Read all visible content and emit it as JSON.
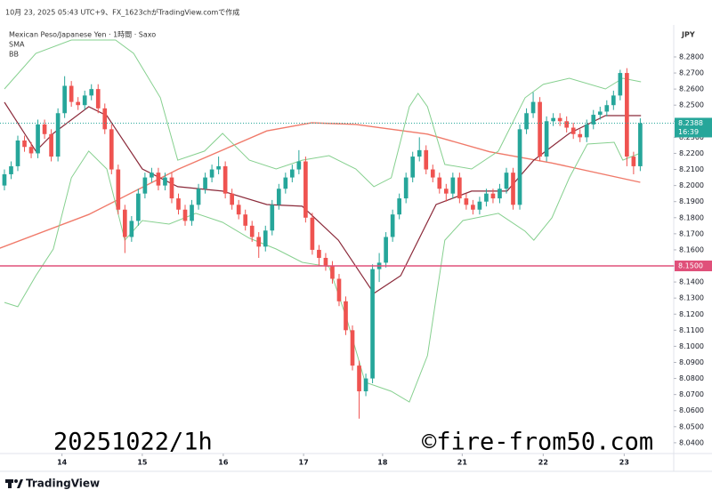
{
  "chart_data": {
    "type": "candlestick",
    "header": "10月 23, 2025 05:43 UTC+9、FX_1623chがTradingView.comで作成",
    "title": "Mexican Peso/Japanese Yen · 1時間 · Saxo",
    "indicators": [
      "SMA",
      "BB"
    ],
    "currency": "JPY",
    "watermark_left": "20251022/1h",
    "watermark_right": "©fire-from50.com",
    "brand": "TradingView",
    "countdown": "16:39",
    "up_color": "#26a69a",
    "down_color": "#ef5350",
    "xlim": [
      -0.66,
      100
    ],
    "xticks": [
      {
        "value": 8.6,
        "label": "14"
      },
      {
        "value": 20.6,
        "label": "15"
      },
      {
        "value": 32.7,
        "label": "16"
      },
      {
        "value": 44.7,
        "label": "17"
      },
      {
        "value": 56.5,
        "label": "18"
      },
      {
        "value": 68.4,
        "label": "21"
      },
      {
        "value": 80.5,
        "label": "22"
      },
      {
        "value": 92.6,
        "label": "23"
      }
    ],
    "ylim": [
      8.0333,
      8.2988
    ],
    "yticks": [
      {
        "value": 8.04,
        "label": "8.0400"
      },
      {
        "value": 8.05,
        "label": "8.0500"
      },
      {
        "value": 8.06,
        "label": "8.0600"
      },
      {
        "value": 8.07,
        "label": "8.0700"
      },
      {
        "value": 8.08,
        "label": "8.0800"
      },
      {
        "value": 8.09,
        "label": "8.0900"
      },
      {
        "value": 8.1,
        "label": "8.1000"
      },
      {
        "value": 8.11,
        "label": "8.1100"
      },
      {
        "value": 8.12,
        "label": "8.1200"
      },
      {
        "value": 8.13,
        "label": "8.1300"
      },
      {
        "value": 8.14,
        "label": "8.1400"
      },
      {
        "value": 8.15,
        "label": "8.1500"
      },
      {
        "value": 8.16,
        "label": "8.1600"
      },
      {
        "value": 8.17,
        "label": "8.1700"
      },
      {
        "value": 8.18,
        "label": "8.1800"
      },
      {
        "value": 8.19,
        "label": "8.1900"
      },
      {
        "value": 8.2,
        "label": "8.2000"
      },
      {
        "value": 8.21,
        "label": "8.2100"
      },
      {
        "value": 8.22,
        "label": "8.2200"
      },
      {
        "value": 8.23,
        "label": "8.2300"
      },
      {
        "value": 8.24,
        "label": "8.2400"
      },
      {
        "value": 8.25,
        "label": "8.2500"
      },
      {
        "value": 8.26,
        "label": "8.2600"
      },
      {
        "value": 8.27,
        "label": "8.2700"
      },
      {
        "value": 8.28,
        "label": "8.2800"
      }
    ],
    "grid": false,
    "hline": {
      "value": 8.15,
      "label": "8.1500",
      "color": "#e0507a"
    },
    "open": [
      8.2,
      8.207,
      8.212,
      8.228,
      8.224,
      8.22,
      8.238,
      8.232,
      8.218,
      8.245,
      8.262,
      8.252,
      8.25,
      8.256,
      8.26,
      8.248,
      8.235,
      8.21,
      8.185,
      8.168,
      8.178,
      8.195,
      8.205,
      8.208,
      8.2,
      8.205,
      8.192,
      8.185,
      8.178,
      8.188,
      8.198,
      8.205,
      8.21,
      8.212,
      8.195,
      8.188,
      8.182,
      8.175,
      8.168,
      8.162,
      8.172,
      8.188,
      8.198,
      8.205,
      8.21,
      8.215,
      8.18,
      8.16,
      8.155,
      8.15,
      8.142,
      8.128,
      8.11,
      8.088,
      8.072,
      8.08,
      8.148,
      8.152,
      8.168,
      8.182,
      8.192,
      8.205,
      8.218,
      8.222,
      8.21,
      8.205,
      8.198,
      8.195,
      8.205,
      8.192,
      8.188,
      8.185,
      8.19,
      8.195,
      8.192,
      8.198,
      8.208,
      8.188,
      8.235,
      8.245,
      8.252,
      8.218,
      8.24,
      8.242,
      8.24,
      8.236,
      8.232,
      8.23,
      8.238,
      8.244,
      8.246,
      8.25,
      8.256,
      8.27,
      8.218,
      8.212
    ],
    "high": [
      8.21,
      8.215,
      8.231,
      8.231,
      8.227,
      8.241,
      8.241,
      8.235,
      8.248,
      8.268,
      8.265,
      8.255,
      8.259,
      8.263,
      8.263,
      8.251,
      8.238,
      8.213,
      8.188,
      8.181,
      8.198,
      8.208,
      8.211,
      8.211,
      8.208,
      8.208,
      8.195,
      8.188,
      8.191,
      8.201,
      8.208,
      8.213,
      8.218,
      8.215,
      8.198,
      8.191,
      8.185,
      8.178,
      8.171,
      8.175,
      8.191,
      8.201,
      8.208,
      8.213,
      8.222,
      8.218,
      8.183,
      8.163,
      8.158,
      8.153,
      8.145,
      8.131,
      8.113,
      8.091,
      8.083,
      8.151,
      8.158,
      8.171,
      8.185,
      8.195,
      8.208,
      8.221,
      8.23,
      8.225,
      8.213,
      8.208,
      8.201,
      8.208,
      8.208,
      8.195,
      8.191,
      8.193,
      8.198,
      8.198,
      8.201,
      8.211,
      8.211,
      8.238,
      8.248,
      8.258,
      8.255,
      8.243,
      8.245,
      8.245,
      8.243,
      8.239,
      8.235,
      8.241,
      8.247,
      8.249,
      8.253,
      8.259,
      8.272,
      8.273,
      8.221,
      8.2418
    ],
    "low": [
      8.197,
      8.204,
      8.209,
      8.221,
      8.217,
      8.217,
      8.229,
      8.215,
      8.215,
      8.242,
      8.249,
      8.247,
      8.247,
      8.253,
      8.245,
      8.232,
      8.207,
      8.182,
      8.158,
      8.165,
      8.175,
      8.192,
      8.202,
      8.197,
      8.197,
      8.189,
      8.182,
      8.175,
      8.175,
      8.185,
      8.195,
      8.202,
      8.207,
      8.192,
      8.185,
      8.179,
      8.172,
      8.165,
      8.155,
      8.159,
      8.169,
      8.185,
      8.195,
      8.202,
      8.207,
      8.177,
      8.157,
      8.15,
      8.147,
      8.139,
      8.125,
      8.107,
      8.085,
      8.055,
      8.069,
      8.077,
      8.14,
      8.149,
      8.165,
      8.179,
      8.189,
      8.202,
      8.215,
      8.207,
      8.202,
      8.195,
      8.19,
      8.192,
      8.189,
      8.185,
      8.182,
      8.182,
      8.187,
      8.189,
      8.189,
      8.195,
      8.185,
      8.185,
      8.232,
      8.242,
      8.215,
      8.215,
      8.237,
      8.237,
      8.233,
      8.229,
      8.227,
      8.227,
      8.235,
      8.241,
      8.243,
      8.247,
      8.253,
      8.212,
      8.207,
      8.209
    ],
    "close": [
      8.207,
      8.212,
      8.228,
      8.224,
      8.22,
      8.238,
      8.232,
      8.218,
      8.245,
      8.262,
      8.252,
      8.25,
      8.256,
      8.26,
      8.248,
      8.235,
      8.21,
      8.185,
      8.168,
      8.178,
      8.195,
      8.205,
      8.208,
      8.2,
      8.205,
      8.192,
      8.185,
      8.178,
      8.188,
      8.198,
      8.205,
      8.21,
      8.212,
      8.195,
      8.188,
      8.182,
      8.175,
      8.168,
      8.162,
      8.172,
      8.188,
      8.198,
      8.205,
      8.21,
      8.215,
      8.18,
      8.16,
      8.155,
      8.15,
      8.142,
      8.128,
      8.11,
      8.088,
      8.072,
      8.08,
      8.148,
      8.152,
      8.168,
      8.182,
      8.192,
      8.205,
      8.218,
      8.222,
      8.21,
      8.205,
      8.198,
      8.195,
      8.205,
      8.192,
      8.188,
      8.185,
      8.19,
      8.195,
      8.192,
      8.198,
      8.208,
      8.188,
      8.235,
      8.245,
      8.252,
      8.218,
      8.24,
      8.242,
      8.24,
      8.236,
      8.232,
      8.23,
      8.238,
      8.244,
      8.246,
      8.25,
      8.256,
      8.27,
      8.218,
      8.212,
      8.2388
    ],
    "series": [
      {
        "color": "#f07a6a",
        "width": 1.4,
        "x": [
          -0.7,
          12.6,
          25.9,
          39.2,
          45.9,
          52.5,
          63.2,
          72.5,
          81.8,
          95
        ],
        "values": [
          8.161,
          8.182,
          8.21,
          8.234,
          8.239,
          8.238,
          8.232,
          8.221,
          8.214,
          8.202
        ]
      },
      {
        "color": "#8b2a3a",
        "width": 1.2,
        "x": [
          0,
          4.7,
          7.3,
          12.6,
          15.3,
          20.6,
          25.9,
          32.6,
          39.2,
          44.5,
          49.9,
          55.2,
          59.2,
          64.5,
          69.8,
          75.1,
          79.1,
          84.4,
          89.8,
          95.1
        ],
        "values": [
          8.2518,
          8.2214,
          8.2324,
          8.249,
          8.2435,
          8.2103,
          8.1993,
          8.1965,
          8.1882,
          8.1871,
          8.166,
          8.1329,
          8.1439,
          8.1882,
          8.1965,
          8.1965,
          8.2158,
          8.2324,
          8.2435,
          8.2435
        ]
      },
      {
        "color": "#86d08f",
        "width": 1,
        "x": [
          0,
          4.7,
          10,
          14,
          16.6,
          19.3,
          23.3,
          25.9,
          29.9,
          32.6,
          36.6,
          40.6,
          44.5,
          48.5,
          52.5,
          55.2,
          57.8,
          60.5,
          61.8,
          63.2,
          65.8,
          69.8,
          73.8,
          77.8,
          80.5,
          84.4,
          89.8,
          92.4,
          95.1
        ],
        "values": [
          8.2601,
          8.2822,
          8.2905,
          8.2905,
          8.2905,
          8.2822,
          8.2546,
          8.2158,
          8.2214,
          8.2324,
          8.2158,
          8.2103,
          8.2158,
          8.2186,
          8.2103,
          8.1993,
          8.2048,
          8.249,
          8.2573,
          8.249,
          8.2131,
          8.2103,
          8.2214,
          8.2546,
          8.2629,
          8.2667,
          8.2601,
          8.2667,
          8.2645
        ]
      },
      {
        "color": "#86d08f",
        "width": 1,
        "x": [
          0,
          2,
          4.7,
          7.3,
          10,
          12.6,
          15.3,
          18,
          20.6,
          24.6,
          28.6,
          32.6,
          36.6,
          40.6,
          44.5,
          48.5,
          51.2,
          53.9,
          57.8,
          60.5,
          63.2,
          65.8,
          68.5,
          73.8,
          77.8,
          79.1,
          81.8,
          84.4,
          87.1,
          91.1,
          92.4,
          95.1
        ],
        "values": [
          8.1273,
          8.1246,
          8.1439,
          8.1605,
          8.2048,
          8.2214,
          8.2103,
          8.166,
          8.1782,
          8.176,
          8.1827,
          8.1771,
          8.1672,
          8.1605,
          8.1522,
          8.1495,
          8.1163,
          8.0776,
          8.072,
          8.0654,
          8.0942,
          8.166,
          8.1782,
          8.1827,
          8.1716,
          8.166,
          8.1799,
          8.2048,
          8.2258,
          8.2269,
          8.2158,
          8.2203
        ]
      }
    ]
  }
}
